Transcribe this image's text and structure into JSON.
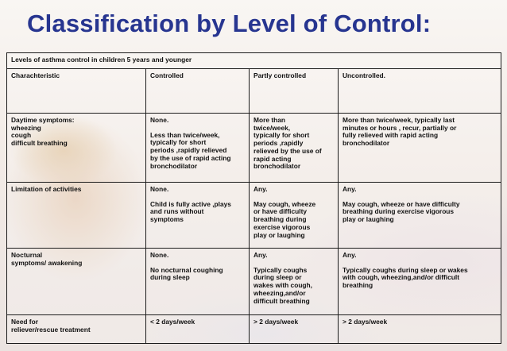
{
  "title": "Classification by Level of Control:",
  "table": {
    "caption": "Levels of asthma control in children 5 years and younger",
    "headers": [
      "Charachteristic",
      "Controlled",
      "Partly controlled",
      "Uncontrolled."
    ],
    "rows": [
      {
        "characteristic": "Daytime symptoms:\nwheezing\ncough\ndifficult breathing",
        "controlled_first": "None.",
        "controlled_second": "Less than twice/week,\ntypically for short\nperiods ,rapidly relieved\nby the use of rapid acting\nbronchodilator",
        "partly": "More than\ntwice/week,\ntypically for short\nperiods ,rapidly\nrelieved by the use of\nrapid acting\nbronchodilator",
        "uncontrolled_first": "More than twice/week, typically last\nminutes or hours , recur, partially or\nfully relieved with rapid acting\nbronchodilator",
        "uncontrolled_second": ""
      },
      {
        "characteristic": "Limitation of activities",
        "controlled_first": "None.",
        "controlled_second": "Child is fully active ,plays\nand runs without\nsymptoms",
        "partly_first": "Any.",
        "partly_second": "May cough, wheeze\nor have difficulty\nbreathing during\nexercise vigorous\nplay or laughing",
        "uncontrolled_first": "Any.",
        "uncontrolled_second": "May cough, wheeze or have difficulty\nbreathing during exercise vigorous\nplay or laughing"
      },
      {
        "characteristic": "Nocturnal\nsymptoms/ awakening",
        "controlled_first": "None.",
        "controlled_second": "No nocturnal coughing\nduring sleep",
        "partly_first": "Any.",
        "partly_second": "Typically coughs\nduring sleep or\nwakes with cough,\nwheezing,and/or\ndifficult breathing",
        "uncontrolled_first": "Any.",
        "uncontrolled_second": "Typically coughs during sleep or wakes\nwith cough, wheezing,and/or difficult\nbreathing"
      },
      {
        "characteristic": "Need for\nreliever/rescue treatment",
        "controlled": "< 2 days/week",
        "partly": "> 2 days/week",
        "uncontrolled": "> 2 days/week"
      }
    ]
  }
}
